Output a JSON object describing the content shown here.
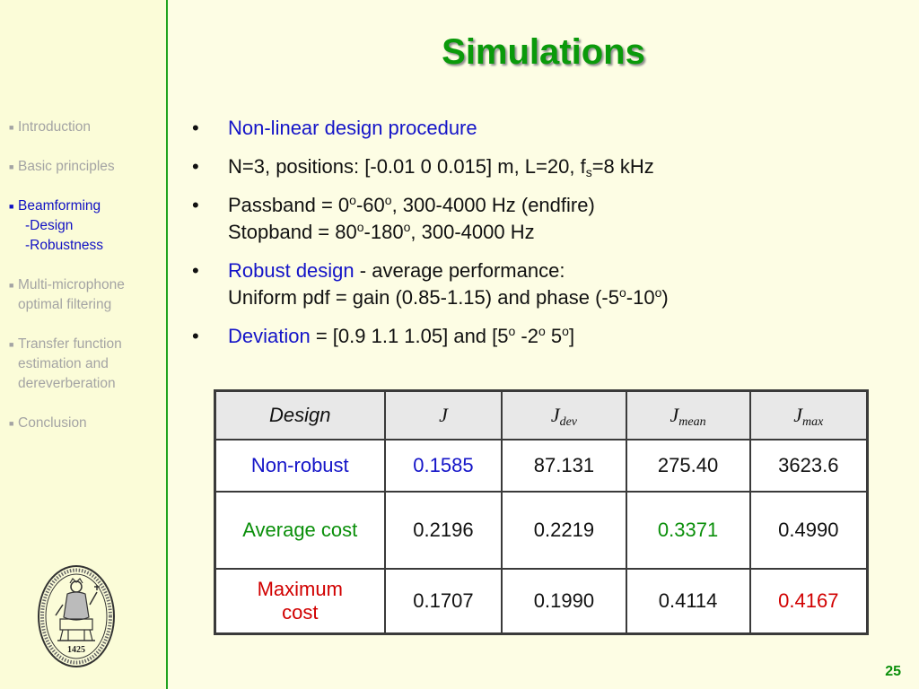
{
  "title": "Simulations",
  "nav": {
    "items": [
      {
        "label": "Introduction"
      },
      {
        "label": "Basic principles"
      },
      {
        "label": "Beamforming",
        "subs": [
          "-Design",
          "-Robustness"
        ]
      },
      {
        "label": "Multi-microphone",
        "line2": "optimal filtering"
      },
      {
        "label": "Transfer function",
        "line2": "estimation and",
        "line3": "dereverberation"
      },
      {
        "label": "Conclusion"
      }
    ]
  },
  "seal": {
    "year": "1425"
  },
  "bullets": {
    "b1": "Non-linear design procedure",
    "b2": {
      "pre": "N=3, positions: [-0.01  0  0.015] m, L=20, f",
      "sub": "s",
      "post": "=8 kHz"
    },
    "b3": {
      "a": "Passband = 0",
      "deg": "o",
      "b": "-60",
      "c": ", 300-4000 Hz (endfire)",
      "d": "Stopband = 80",
      "e": "-180",
      "f": ", 300-4000 Hz"
    },
    "b4": {
      "highlight": "Robust design",
      "rest": " - average performance:",
      "line2a": "Uniform pdf = gain (0.85-1.15) and phase (-5",
      "line2b": "-10",
      "line2c": ")"
    },
    "b5": {
      "highlight": "Deviation",
      "a": " = [0.9  1.1  1.05] and [5",
      "b": " -2",
      "c": " 5",
      "d": "]"
    }
  },
  "table": {
    "headers": {
      "design": "Design",
      "j": "J",
      "jdev": {
        "base": "J",
        "sub": "dev"
      },
      "jmean": {
        "base": "J",
        "sub": "mean"
      },
      "jmax": {
        "base": "J",
        "sub": "max"
      }
    },
    "rows": [
      {
        "label": "Non-robust",
        "values": [
          "0.1585",
          "87.131",
          "275.40",
          "3623.6"
        ]
      },
      {
        "label": "Average cost",
        "values": [
          "0.2196",
          "0.2219",
          "0.3371",
          "0.4990"
        ]
      },
      {
        "label": "Maximum cost",
        "values": [
          "0.1707",
          "0.1990",
          "0.4114",
          "0.4167"
        ]
      }
    ]
  },
  "page_number": "25",
  "colors": {
    "title": "#0a9a0a",
    "accent_blue": "#1414c8",
    "accent_green": "#0a8f0a",
    "accent_red": "#d10000",
    "divider": "#1fa31f",
    "background": "#fdfde4"
  }
}
